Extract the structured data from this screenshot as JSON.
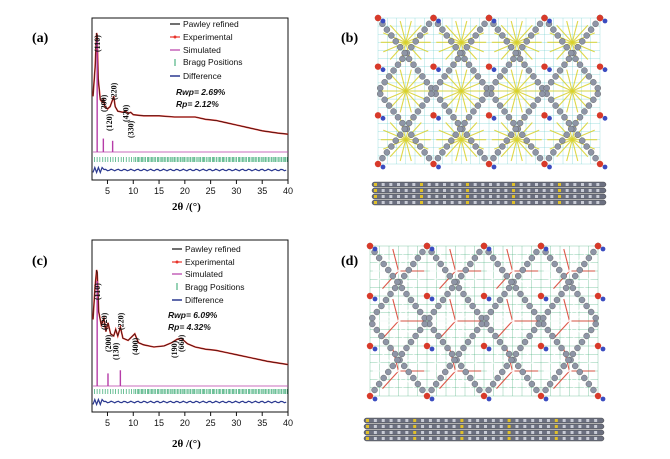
{
  "panels": {
    "a": "(a)",
    "b": "(b)",
    "c": "(c)",
    "d": "(d)"
  },
  "colors": {
    "pawley": "#111111",
    "experimental": "#e8332a",
    "simulated": "#b63ca8",
    "bragg": "#2ea56b",
    "difference": "#2b3990",
    "framework_atom": "#8e95a6",
    "linker_yellow": "#d9d12a",
    "linker_cyan": "#5fc9c9",
    "linker_red": "#d83a2a"
  },
  "chart_data": [
    {
      "type": "line",
      "panel": "(a)",
      "xlabel": "2θ /(°)",
      "x_ticks": [
        "5",
        "10",
        "15",
        "20",
        "25",
        "30",
        "35",
        "40"
      ],
      "xlim": [
        2,
        40
      ],
      "legend": [
        "Pawley refined",
        "Experimental",
        "Simulated",
        "Bragg Positions",
        "Difference"
      ],
      "stats": {
        "rwp": "Rwp= 2.69%",
        "rp": "Rp= 2.12%"
      },
      "peaks": [
        {
          "label": "(110)",
          "x": 3.0
        },
        {
          "label": "(200)",
          "x": 4.2
        },
        {
          "label": "(120)",
          "x": 5.3
        },
        {
          "label": "(220)",
          "x": 6.2
        },
        {
          "label": "(420)",
          "x": 8.5
        },
        {
          "label": "(330)",
          "x": 9.5
        }
      ],
      "experimental": {
        "x": [
          2.2,
          2.6,
          2.9,
          3.0,
          3.2,
          3.6,
          4.0,
          4.2,
          4.5,
          5.0,
          5.5,
          6.0,
          6.2,
          6.5,
          7.0,
          8.0,
          8.5,
          9.0,
          9.5,
          10,
          12,
          15,
          18,
          20,
          22,
          24,
          26,
          28,
          30,
          32,
          35,
          38,
          40
        ],
        "y": [
          0.45,
          0.7,
          1.0,
          0.98,
          0.6,
          0.42,
          0.4,
          0.43,
          0.36,
          0.34,
          0.36,
          0.42,
          0.45,
          0.36,
          0.32,
          0.31,
          0.32,
          0.3,
          0.31,
          0.29,
          0.28,
          0.28,
          0.27,
          0.27,
          0.27,
          0.25,
          0.24,
          0.22,
          0.2,
          0.18,
          0.15,
          0.13,
          0.12
        ]
      },
      "simulated_sticks": [
        {
          "x": 3.0,
          "y": 1.0
        },
        {
          "x": 4.2,
          "y": 0.12
        },
        {
          "x": 6.0,
          "y": 0.1
        }
      ],
      "bragg_range": [
        2.5,
        40
      ],
      "difference_y": 0.0
    },
    {
      "type": "line",
      "panel": "(c)",
      "xlabel": "2θ /(°)",
      "x_ticks": [
        "5",
        "10",
        "15",
        "20",
        "25",
        "30",
        "35",
        "40"
      ],
      "xlim": [
        2,
        40
      ],
      "legend": [
        "Pawley refined",
        "Experimental",
        "Simulated",
        "Bragg Positions",
        "Difference"
      ],
      "stats": {
        "rwp": "Rwp= 6.09%",
        "rp": "Rp= 4.32%"
      },
      "peaks": [
        {
          "label": "(110)",
          "x": 3.0
        },
        {
          "label": "(020)",
          "x": 4.3
        },
        {
          "label": "(200)",
          "x": 5.1
        },
        {
          "label": "(130)",
          "x": 6.6
        },
        {
          "label": "(220)",
          "x": 7.5
        },
        {
          "label": "(400)",
          "x": 10.3
        },
        {
          "label": "(190)",
          "x": 17.9
        },
        {
          "label": "(660)",
          "x": 19.3
        }
      ],
      "experimental": {
        "x": [
          2.2,
          2.6,
          2.9,
          3.0,
          3.3,
          3.8,
          4.3,
          4.7,
          5.1,
          5.6,
          6.2,
          6.6,
          7.0,
          7.5,
          8.0,
          9.0,
          10.3,
          11,
          12,
          14,
          16,
          17.5,
          18.5,
          19.3,
          20.5,
          22,
          24,
          26,
          28,
          30,
          33,
          36,
          40
        ],
        "y": [
          0.55,
          0.85,
          1.0,
          0.98,
          0.62,
          0.5,
          0.56,
          0.44,
          0.52,
          0.42,
          0.4,
          0.46,
          0.4,
          0.48,
          0.38,
          0.36,
          0.42,
          0.34,
          0.32,
          0.3,
          0.31,
          0.34,
          0.37,
          0.38,
          0.33,
          0.3,
          0.28,
          0.27,
          0.25,
          0.23,
          0.2,
          0.17,
          0.14
        ]
      },
      "simulated_sticks": [
        {
          "x": 3.0,
          "y": 1.0
        },
        {
          "x": 5.1,
          "y": 0.12
        },
        {
          "x": 7.5,
          "y": 0.15
        }
      ],
      "bragg_range": [
        2.5,
        40
      ],
      "difference_y": 0.0
    }
  ]
}
